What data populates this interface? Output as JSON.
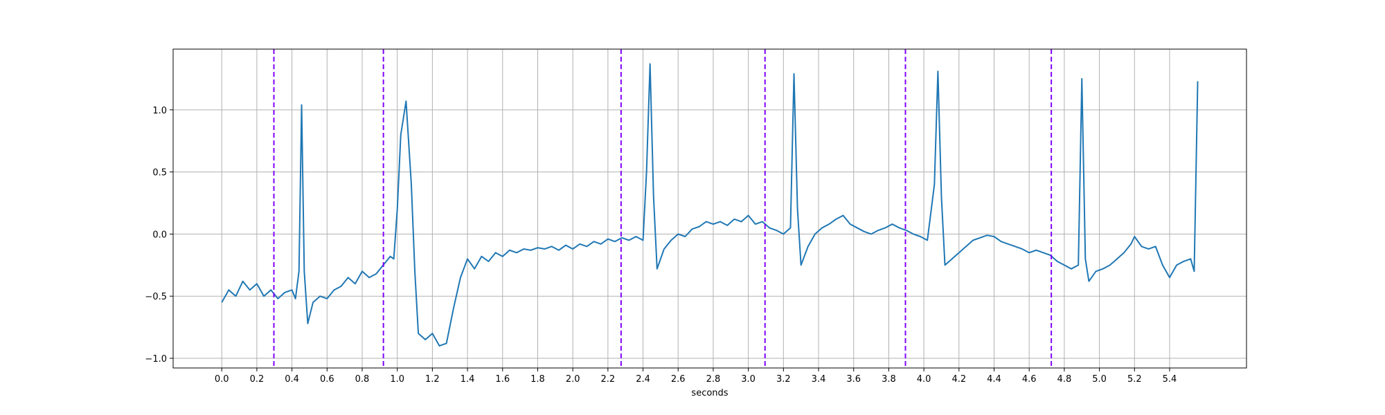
{
  "chart_data": {
    "type": "line",
    "xlabel": "seconds",
    "grid": true,
    "xlim": [
      -0.277,
      5.838
    ],
    "ylim": [
      -1.078,
      1.489
    ],
    "xticks": [
      {
        "value": 0,
        "label": "0.0"
      },
      {
        "value": 0.2,
        "label": "0.2"
      },
      {
        "value": 0.4,
        "label": "0.4"
      },
      {
        "value": 0.6,
        "label": "0.6"
      },
      {
        "value": 0.8,
        "label": "0.8"
      },
      {
        "value": 1.0,
        "label": "1.0"
      },
      {
        "value": 1.2,
        "label": "1.2"
      },
      {
        "value": 1.4,
        "label": "1.4"
      },
      {
        "value": 1.6,
        "label": "1.6"
      },
      {
        "value": 1.8,
        "label": "1.8"
      },
      {
        "value": 2.0,
        "label": "2.0"
      },
      {
        "value": 2.2,
        "label": "2.2"
      },
      {
        "value": 2.4,
        "label": "2.4"
      },
      {
        "value": 2.6,
        "label": "2.6"
      },
      {
        "value": 2.8,
        "label": "2.8"
      },
      {
        "value": 3.0,
        "label": "3.0"
      },
      {
        "value": 3.2,
        "label": "3.2"
      },
      {
        "value": 3.4,
        "label": "3.4"
      },
      {
        "value": 3.6,
        "label": "3.6"
      },
      {
        "value": 3.8,
        "label": "3.8"
      },
      {
        "value": 4.0,
        "label": "4.0"
      },
      {
        "value": 4.2,
        "label": "4.2"
      },
      {
        "value": 4.4,
        "label": "4.4"
      },
      {
        "value": 4.6,
        "label": "4.6"
      },
      {
        "value": 4.8,
        "label": "4.8"
      },
      {
        "value": 5.0,
        "label": "5.0"
      },
      {
        "value": 5.2,
        "label": "5.2"
      },
      {
        "value": 5.4,
        "label": "5.4"
      }
    ],
    "yticks": [
      {
        "value": -1.0,
        "label": "−1.0"
      },
      {
        "value": -0.5,
        "label": "−0.5"
      },
      {
        "value": 0,
        "label": "0.0"
      },
      {
        "value": 0.5,
        "label": "0.5"
      },
      {
        "value": 1.0,
        "label": "1.0"
      }
    ],
    "vlines": {
      "color": "#7f00ff",
      "x": [
        0.297,
        0.921,
        2.275,
        3.095,
        3.895,
        4.726
      ]
    },
    "series": [
      {
        "color": "#1f77b4",
        "x": [
          0,
          0.04,
          0.08,
          0.12,
          0.16,
          0.2,
          0.24,
          0.28,
          0.32,
          0.36,
          0.4,
          0.42,
          0.44,
          0.455,
          0.47,
          0.49,
          0.52,
          0.56,
          0.6,
          0.64,
          0.68,
          0.72,
          0.76,
          0.8,
          0.84,
          0.88,
          0.92,
          0.96,
          0.98,
          1.0,
          1.02,
          1.05,
          1.08,
          1.1,
          1.12,
          1.16,
          1.2,
          1.24,
          1.28,
          1.32,
          1.36,
          1.4,
          1.44,
          1.48,
          1.52,
          1.56,
          1.6,
          1.64,
          1.68,
          1.72,
          1.76,
          1.8,
          1.84,
          1.88,
          1.92,
          1.96,
          2.0,
          2.04,
          2.08,
          2.12,
          2.16,
          2.2,
          2.24,
          2.28,
          2.32,
          2.36,
          2.4,
          2.42,
          2.44,
          2.46,
          2.48,
          2.52,
          2.56,
          2.6,
          2.64,
          2.68,
          2.72,
          2.76,
          2.8,
          2.84,
          2.88,
          2.92,
          2.96,
          3.0,
          3.04,
          3.08,
          3.12,
          3.16,
          3.2,
          3.24,
          3.26,
          3.28,
          3.3,
          3.34,
          3.38,
          3.42,
          3.46,
          3.5,
          3.54,
          3.58,
          3.62,
          3.66,
          3.7,
          3.74,
          3.78,
          3.82,
          3.86,
          3.9,
          3.94,
          3.98,
          4.02,
          4.06,
          4.08,
          4.1,
          4.12,
          4.16,
          4.2,
          4.24,
          4.28,
          4.32,
          4.36,
          4.4,
          4.44,
          4.48,
          4.52,
          4.56,
          4.6,
          4.64,
          4.68,
          4.72,
          4.76,
          4.8,
          4.84,
          4.88,
          4.9,
          4.92,
          4.94,
          4.98,
          5.02,
          5.06,
          5.1,
          5.14,
          5.18,
          5.2,
          5.24,
          5.28,
          5.32,
          5.36,
          5.4,
          5.44,
          5.48,
          5.52,
          5.54,
          5.56
        ],
        "values": [
          -0.55,
          -0.45,
          -0.5,
          -0.38,
          -0.45,
          -0.4,
          -0.5,
          -0.45,
          -0.52,
          -0.47,
          -0.45,
          -0.52,
          -0.3,
          1.04,
          -0.3,
          -0.72,
          -0.55,
          -0.5,
          -0.52,
          -0.45,
          -0.42,
          -0.35,
          -0.4,
          -0.3,
          -0.35,
          -0.32,
          -0.25,
          -0.18,
          -0.2,
          0.2,
          0.8,
          1.07,
          0.4,
          -0.3,
          -0.8,
          -0.85,
          -0.8,
          -0.9,
          -0.88,
          -0.6,
          -0.35,
          -0.2,
          -0.28,
          -0.18,
          -0.22,
          -0.15,
          -0.18,
          -0.13,
          -0.15,
          -0.12,
          -0.13,
          -0.11,
          -0.12,
          -0.1,
          -0.13,
          -0.09,
          -0.12,
          -0.08,
          -0.1,
          -0.06,
          -0.08,
          -0.04,
          -0.06,
          -0.03,
          -0.05,
          -0.02,
          -0.05,
          0.5,
          1.37,
          0.3,
          -0.28,
          -0.12,
          -0.05,
          0,
          -0.02,
          0.04,
          0.06,
          0.1,
          0.08,
          0.1,
          0.07,
          0.12,
          0.1,
          0.15,
          0.08,
          0.1,
          0.05,
          0.03,
          0,
          0.05,
          1.29,
          0.2,
          -0.25,
          -0.1,
          0,
          0.05,
          0.08,
          0.12,
          0.15,
          0.08,
          0.05,
          0.02,
          0,
          0.03,
          0.05,
          0.08,
          0.05,
          0.03,
          0,
          -0.02,
          -0.05,
          0.4,
          1.31,
          0.3,
          -0.25,
          -0.2,
          -0.15,
          -0.1,
          -0.05,
          -0.03,
          -0.01,
          -0.02,
          -0.06,
          -0.08,
          -0.1,
          -0.12,
          -0.15,
          -0.13,
          -0.15,
          -0.17,
          -0.22,
          -0.25,
          -0.28,
          -0.25,
          1.25,
          -0.2,
          -0.38,
          -0.3,
          -0.28,
          -0.25,
          -0.2,
          -0.15,
          -0.08,
          -0.02,
          -0.1,
          -0.12,
          -0.1,
          -0.25,
          -0.35,
          -0.25,
          -0.22,
          -0.2,
          -0.3,
          1.23
        ]
      }
    ]
  }
}
